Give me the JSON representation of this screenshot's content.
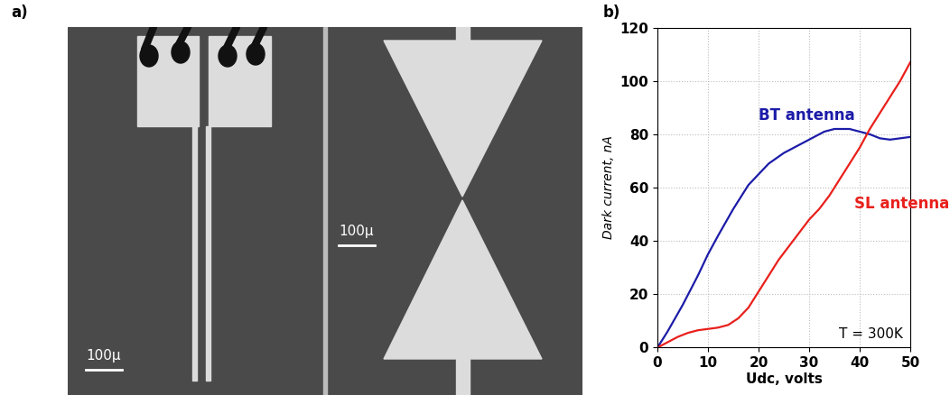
{
  "figure": {
    "panel_labels": [
      "a)",
      "b)"
    ],
    "photo": {
      "scale_bar_labels": [
        "100μ",
        "100μ"
      ]
    }
  },
  "chart_data": {
    "type": "line",
    "x_label": "Udc, volts",
    "y_label": "Dark current, nA",
    "annotations": [
      "T = 300K"
    ],
    "xlim": [
      0,
      50
    ],
    "xticks": [
      0,
      10,
      20,
      30,
      40,
      50
    ],
    "ylim": [
      0,
      120
    ],
    "yticks": [
      0,
      20,
      40,
      60,
      80,
      100,
      120
    ],
    "grid": true,
    "series": [
      {
        "name": "BT antenna",
        "color": "#1c1ca8",
        "line_style": "solid",
        "x": [
          0,
          2,
          5,
          8,
          10,
          12,
          15,
          18,
          20,
          22,
          25,
          28,
          30,
          33,
          35,
          37,
          38,
          40,
          42,
          44,
          46,
          48,
          50
        ],
        "values": [
          0,
          6,
          16,
          27,
          35,
          42,
          52,
          61,
          65,
          69,
          73,
          76,
          78,
          81,
          82,
          82,
          82,
          81,
          80,
          78.5,
          78,
          78.5,
          79
        ]
      },
      {
        "name": "SL antenna",
        "color": "#e8201c",
        "line_style": "solid",
        "x": [
          0,
          2,
          4,
          6,
          8,
          10,
          12,
          14,
          16,
          18,
          20,
          22,
          24,
          26,
          28,
          30,
          32,
          34,
          36,
          38,
          40,
          42,
          44,
          46,
          48,
          50
        ],
        "values": [
          0,
          2,
          4,
          5.5,
          6.5,
          7,
          7.5,
          8.5,
          11,
          15,
          21,
          27,
          33,
          38,
          43,
          48,
          52,
          57,
          63,
          69,
          75,
          82,
          88,
          94,
          100,
          107
        ]
      }
    ]
  }
}
